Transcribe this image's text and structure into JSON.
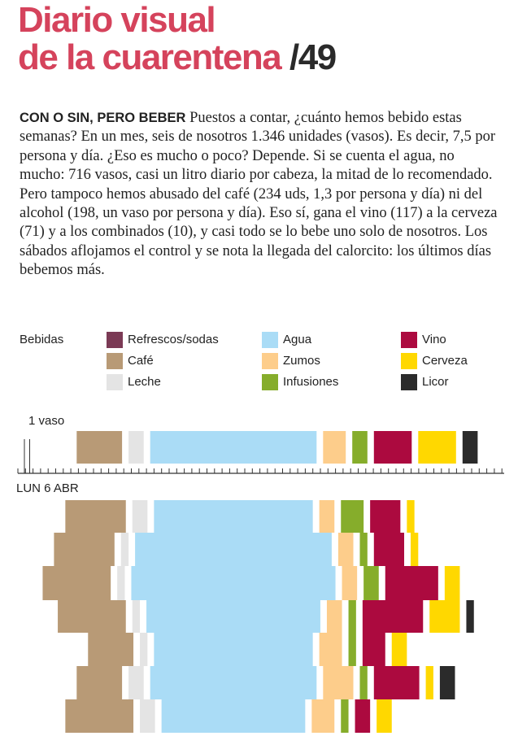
{
  "header": {
    "title_line1": "Diario visual",
    "title_line2": "de la cuarentena",
    "number": "/49"
  },
  "article": {
    "lead": "CON O SIN, PERO BEBER",
    "body": "Puestos a contar, ¿cuánto hemos bebido estas semanas? En un mes, seis de nosotros 1.346 unidades (vasos). Es decir, 7,5 por persona y día. ¿Eso es mucho o poco? Depende. Si se cuenta el agua, no mucho: 716 vasos, casi un litro diario por cabeza, la mitad de lo recomendado. Pero tampoco hemos abusado del café (234 uds, 1,3 por persona y día) ni del alcohol (198, un vaso por persona y día). Eso sí, gana el vino (117) a la cerveza (71) y a los combinados (10), y casi todo se lo bebe uno solo de nosotros. Los sábados aflojamos el control y se nota la llegada del calorcito: los últimos días bebemos más."
  },
  "chart_data": {
    "type": "bar",
    "legend_title": "Bebidas",
    "annotation": "1 vaso",
    "categories": [
      "LUN 6 ABR",
      null,
      null,
      null,
      null,
      null,
      null,
      null
    ],
    "series": [
      {
        "name": "Refrescos/sodas",
        "color": "#7b3a55",
        "values": [
          0,
          0,
          0,
          0,
          0,
          0,
          0,
          0
        ]
      },
      {
        "name": "Café",
        "color": "#b89a76",
        "values": [
          6,
          8,
          8,
          9,
          9,
          6,
          6,
          9
        ]
      },
      {
        "name": "Leche",
        "color": "#e4e4e4",
        "values": [
          2,
          2,
          1,
          1,
          1,
          1,
          2,
          2
        ]
      },
      {
        "name": "Agua",
        "color": "#aadcf6",
        "values": [
          22,
          21,
          26,
          27,
          23,
          21,
          22,
          19
        ]
      },
      {
        "name": "Zumos",
        "color": "#fdcd8b",
        "values": [
          3,
          2,
          2,
          2,
          2,
          3,
          4,
          3
        ]
      },
      {
        "name": "Infusiones",
        "color": "#86ad2b",
        "values": [
          2,
          3,
          1,
          2,
          1,
          1,
          1,
          1
        ]
      },
      {
        "name": "Vino",
        "color": "#ac0a3f",
        "values": [
          5,
          4,
          4,
          7,
          8,
          3,
          6,
          2
        ]
      },
      {
        "name": "Cerveza",
        "color": "#ffd800",
        "values": [
          5,
          1,
          1,
          2,
          4,
          2,
          1,
          2
        ]
      },
      {
        "name": "Licor",
        "color": "#2b2b2b",
        "values": [
          2,
          0,
          0,
          0,
          1,
          0,
          2,
          0
        ]
      }
    ]
  }
}
